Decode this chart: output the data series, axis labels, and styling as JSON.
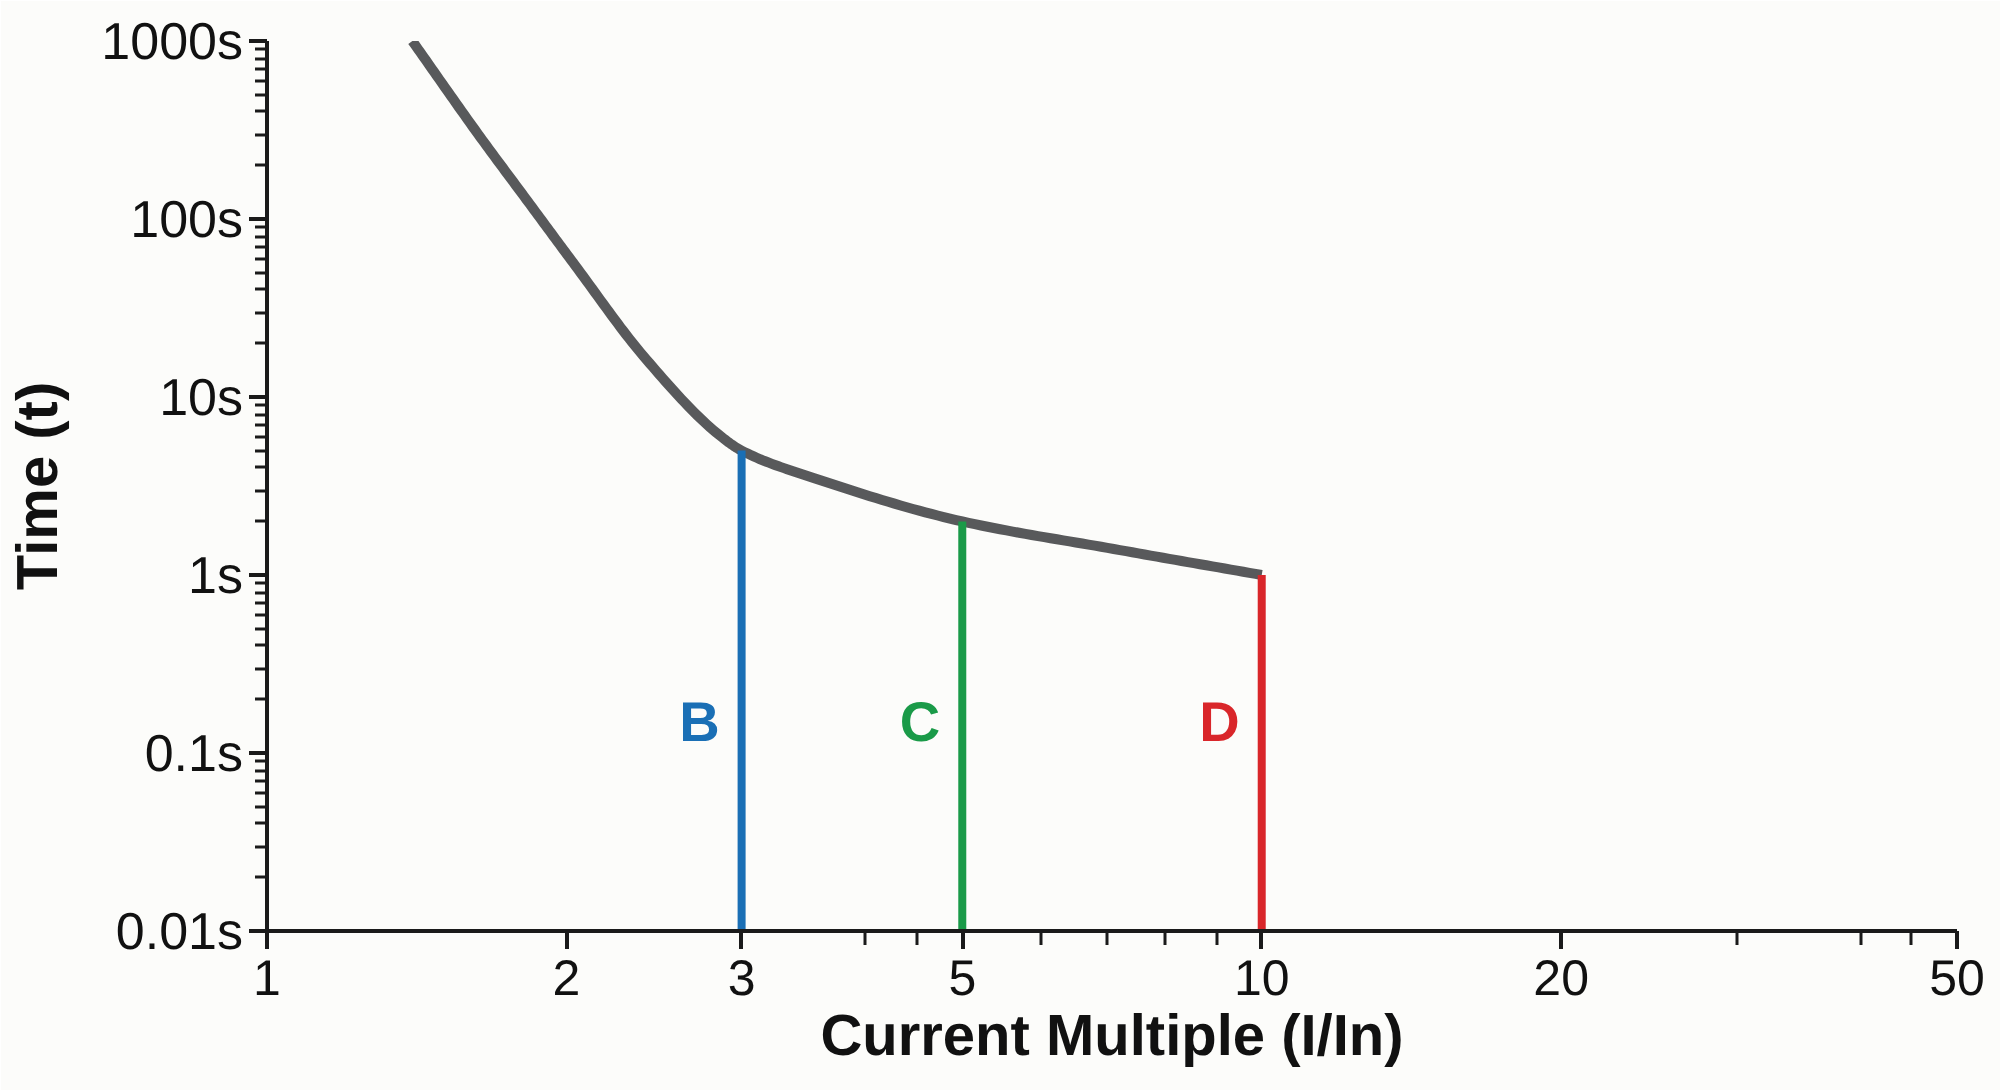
{
  "chart_data": {
    "type": "line",
    "xlabel": "Current Multiple (I/In)",
    "ylabel": "Time (t)",
    "log": "xy",
    "xlim": [
      1,
      50
    ],
    "xticks": [
      1,
      2,
      3,
      {
        "value": 4,
        "label": null
      },
      {
        "value": 4.5,
        "label": null
      },
      5,
      {
        "value": 6,
        "label": null
      },
      {
        "value": 7,
        "label": null
      },
      {
        "value": 8,
        "label": null
      },
      {
        "value": 9,
        "label": null
      },
      10,
      20,
      {
        "value": 30,
        "label": null
      },
      {
        "value": 40,
        "label": null
      },
      {
        "value": 45,
        "label": null
      },
      50
    ],
    "ylim": [
      0.01,
      1000
    ],
    "yticks": [
      {
        "value": 0.01,
        "label": "0.01s"
      },
      {
        "value": 0.1,
        "label": "0.1s"
      },
      {
        "value": 1,
        "label": "1s"
      },
      {
        "value": 10,
        "label": "10s"
      },
      {
        "value": 100,
        "label": "100s"
      },
      {
        "value": 1000,
        "label": "1000s"
      }
    ],
    "series": [
      {
        "color": "#58595b",
        "x": [
          1.4,
          1.63,
          1.83,
          2.04,
          2.39,
          2.85,
          3,
          3.55,
          5,
          7.1,
          10
        ],
        "values": [
          1000,
          300,
          125,
          55,
          17,
          6.1,
          5,
          3.5,
          2,
          1.4,
          1
        ]
      },
      {
        "name": "B",
        "color": "#1a6fb5",
        "x": [
          3,
          3
        ],
        "values": [
          0.01,
          5
        ]
      },
      {
        "name": "C",
        "color": "#1a9a48",
        "x": [
          5,
          5
        ],
        "values": [
          0.01,
          2
        ]
      },
      {
        "name": "D",
        "color": "#d9262a",
        "x": [
          10,
          10
        ],
        "values": [
          0.01,
          1
        ]
      }
    ]
  }
}
